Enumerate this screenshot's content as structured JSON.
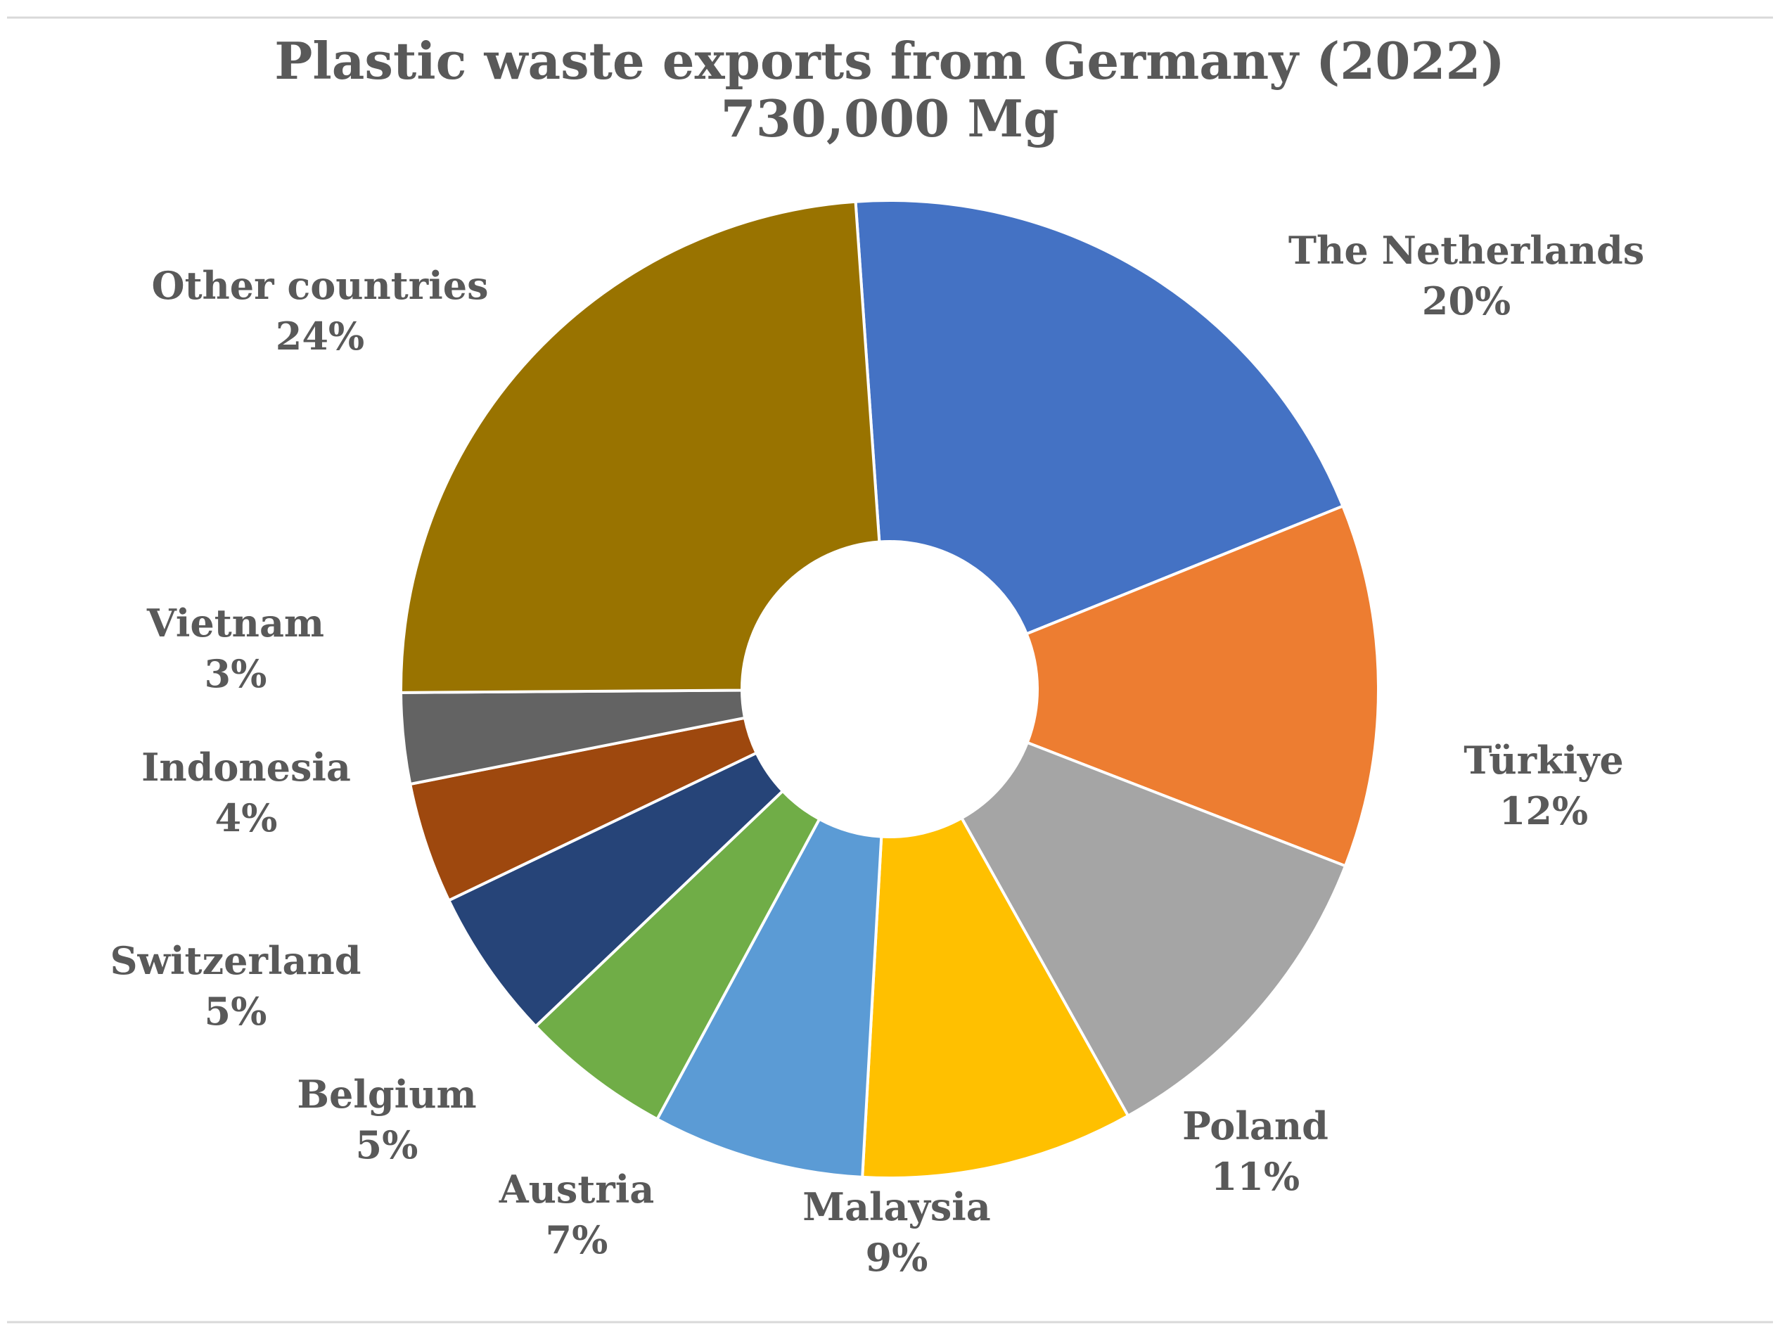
{
  "chart_data": {
    "type": "pie",
    "title": "Plastic waste exports from Germany (2022)",
    "subtitle": "730,000 Mg",
    "slices": [
      {
        "label": "The Netherlands",
        "percent_label": "20%",
        "value": 20,
        "color": "#4472C4"
      },
      {
        "label": "Türkiye",
        "percent_label": "12%",
        "value": 12,
        "color": "#ED7D31"
      },
      {
        "label": "Poland",
        "percent_label": "11%",
        "value": 11,
        "color": "#A5A5A5"
      },
      {
        "label": "Malaysia",
        "percent_label": "9%",
        "value": 9,
        "color": "#FFC000"
      },
      {
        "label": "Austria",
        "percent_label": "7%",
        "value": 7,
        "color": "#5B9BD5"
      },
      {
        "label": "Belgium",
        "percent_label": "5%",
        "value": 5,
        "color": "#70AD47"
      },
      {
        "label": "Switzerland",
        "percent_label": "5%",
        "value": 5,
        "color": "#264478"
      },
      {
        "label": "Indonesia",
        "percent_label": "4%",
        "value": 4,
        "color": "#9E480E"
      },
      {
        "label": "Vietnam",
        "percent_label": "3%",
        "value": 3,
        "color": "#636363"
      },
      {
        "label": "Other countries",
        "percent_label": "24%",
        "value": 24,
        "color": "#997300"
      }
    ]
  }
}
